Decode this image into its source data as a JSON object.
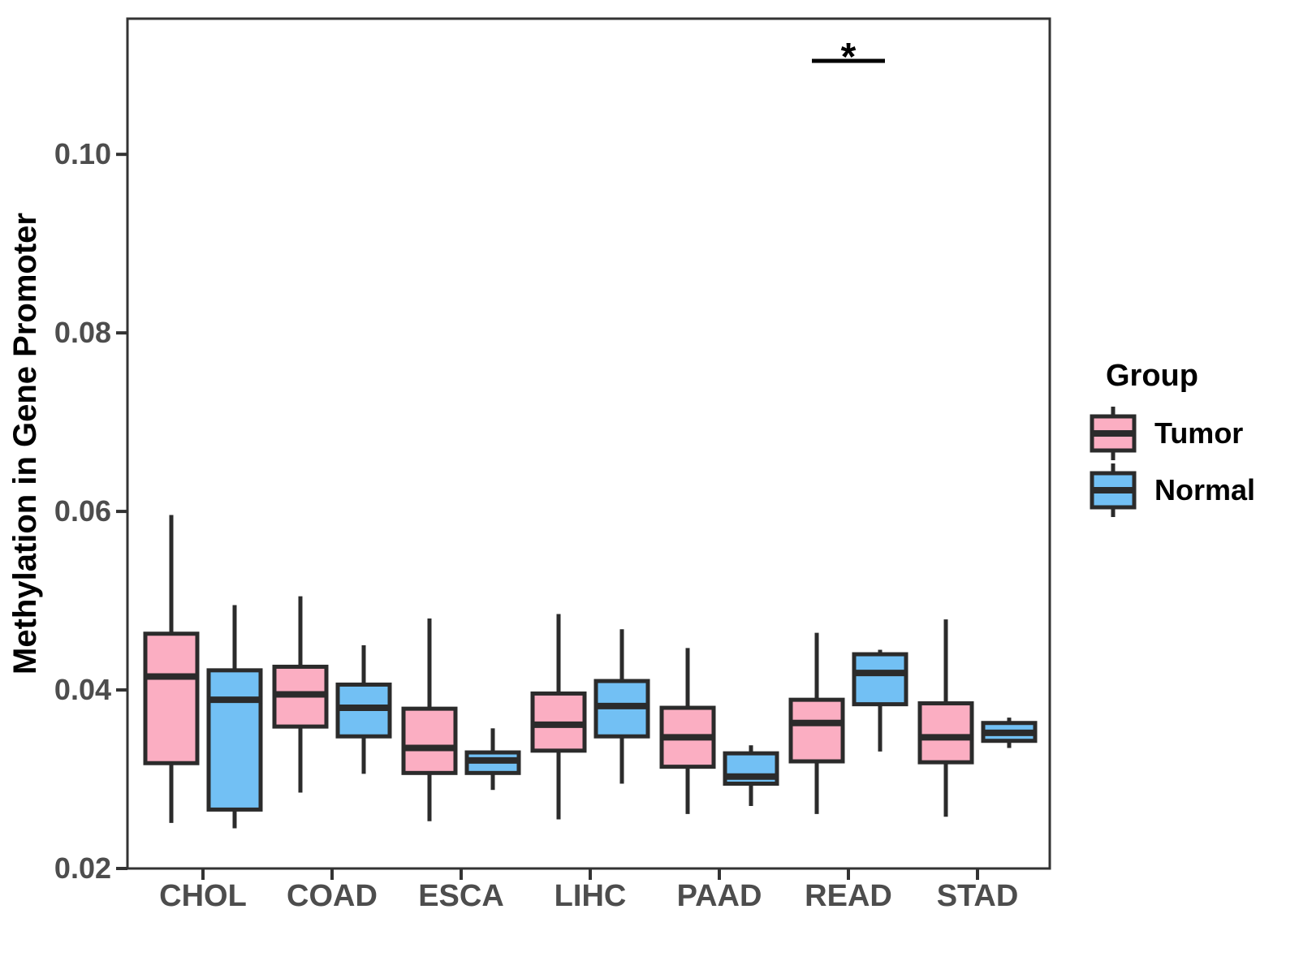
{
  "figure": {
    "background": "#ffffff"
  },
  "colors": {
    "tumor_fill": "#FBAEC2",
    "normal_fill": "#72C0F4",
    "box_stroke": "#2B2B2B",
    "panel_border": "#333333",
    "tick_mark": "#333333",
    "axis_text": "#4D4D4D",
    "axis_title": "#000000",
    "significance": "#000000"
  },
  "chart_data": {
    "type": "grouped_boxplot",
    "title": "",
    "xlabel": "",
    "ylabel": "Methylation in Gene Promoter",
    "categories": [
      "CHOL",
      "COAD",
      "ESCA",
      "LIHC",
      "PAAD",
      "READ",
      "STAD"
    ],
    "yticks": [
      0.02,
      0.04,
      0.06,
      0.08,
      0.1
    ],
    "ytick_labels": [
      "0.02",
      "0.04",
      "0.06",
      "0.08",
      "0.10"
    ],
    "ylim": [
      0.02,
      0.1152
    ],
    "grid": "off",
    "legend_position": "right",
    "series": [
      {
        "name": "Tumor",
        "color": "#FBAEC2",
        "boxes": [
          {
            "category": "CHOL",
            "low": 0.0251,
            "q1": 0.0318,
            "median": 0.0415,
            "q3": 0.0463,
            "high": 0.0596
          },
          {
            "category": "COAD",
            "low": 0.0285,
            "q1": 0.0359,
            "median": 0.0395,
            "q3": 0.0426,
            "high": 0.0505
          },
          {
            "category": "ESCA",
            "low": 0.0253,
            "q1": 0.0307,
            "median": 0.0335,
            "q3": 0.0379,
            "high": 0.048
          },
          {
            "category": "LIHC",
            "low": 0.0255,
            "q1": 0.0332,
            "median": 0.0361,
            "q3": 0.0396,
            "high": 0.0485
          },
          {
            "category": "PAAD",
            "low": 0.0261,
            "q1": 0.0314,
            "median": 0.0347,
            "q3": 0.038,
            "high": 0.0447
          },
          {
            "category": "READ",
            "low": 0.0261,
            "q1": 0.032,
            "median": 0.0363,
            "q3": 0.0389,
            "high": 0.0464
          },
          {
            "category": "STAD",
            "low": 0.0258,
            "q1": 0.0319,
            "median": 0.0347,
            "q3": 0.0385,
            "high": 0.0479
          }
        ]
      },
      {
        "name": "Normal",
        "color": "#72C0F4",
        "boxes": [
          {
            "category": "CHOL",
            "low": 0.0245,
            "q1": 0.0266,
            "median": 0.0389,
            "q3": 0.0422,
            "high": 0.0495
          },
          {
            "category": "COAD",
            "low": 0.0306,
            "q1": 0.0348,
            "median": 0.038,
            "q3": 0.0406,
            "high": 0.045
          },
          {
            "category": "ESCA",
            "low": 0.0288,
            "q1": 0.0307,
            "median": 0.0321,
            "q3": 0.033,
            "high": 0.0357
          },
          {
            "category": "LIHC",
            "low": 0.0295,
            "q1": 0.0348,
            "median": 0.0382,
            "q3": 0.041,
            "high": 0.0468
          },
          {
            "category": "PAAD",
            "low": 0.027,
            "q1": 0.0295,
            "median": 0.0303,
            "q3": 0.0329,
            "high": 0.0338
          },
          {
            "category": "READ",
            "low": 0.0331,
            "q1": 0.0384,
            "median": 0.0419,
            "q3": 0.044,
            "high": 0.0445
          },
          {
            "category": "STAD",
            "low": 0.0335,
            "q1": 0.0343,
            "median": 0.0352,
            "q3": 0.0363,
            "high": 0.0369
          }
        ]
      }
    ],
    "significance": {
      "category": "READ",
      "label": "*"
    }
  },
  "legend": {
    "title": "Group",
    "items": [
      {
        "label": "Tumor",
        "color": "#FBAEC2"
      },
      {
        "label": "Normal",
        "color": "#72C0F4"
      }
    ]
  }
}
